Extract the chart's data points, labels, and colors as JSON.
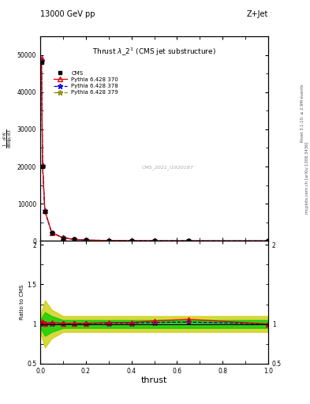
{
  "title_top": "13000 GeV pp",
  "title_right": "Z+Jet",
  "watermark": "CMS_2021_I1920187",
  "xlabel": "thrust",
  "ylabel_main": "1 / mathrm d#sigma / mathrm d p_T   mathrm d^2 sigma / mathrm d p_T mathrm d lambda",
  "ylabel_ratio": "Ratio to CMS",
  "right_label_1": "Rivet 3.1.10, ≥ 2.9M events",
  "right_label_2": "mcplots.cern.ch [arXiv:1306.3436]",
  "x": [
    0.005,
    0.01,
    0.02,
    0.05,
    0.1,
    0.15,
    0.2,
    0.3,
    0.4,
    0.5,
    0.65,
    1.0
  ],
  "cms_y": [
    48000,
    20000,
    8000,
    2200,
    800,
    400,
    220,
    100,
    50,
    25,
    8,
    2
  ],
  "py370_y": [
    49000,
    20500,
    8100,
    2250,
    810,
    405,
    222,
    102,
    51,
    26,
    8.5,
    2
  ],
  "py378_y": [
    48500,
    20200,
    8050,
    2220,
    805,
    402,
    221,
    101,
    50.5,
    25.5,
    8.2,
    2
  ],
  "py379_y": [
    48500,
    20200,
    8050,
    2220,
    805,
    402,
    221,
    101,
    50.5,
    25.5,
    8.2,
    2
  ],
  "ratio_370": [
    1.02,
    1.025,
    1.01,
    1.02,
    1.01,
    1.01,
    1.01,
    1.02,
    1.02,
    1.04,
    1.06,
    1.0
  ],
  "ratio_378": [
    1.01,
    1.01,
    1.006,
    1.01,
    1.006,
    1.005,
    1.005,
    1.01,
    1.01,
    1.02,
    1.025,
    1.0
  ],
  "ratio_379": [
    1.01,
    1.01,
    1.006,
    1.01,
    1.006,
    1.005,
    1.005,
    1.01,
    1.01,
    1.02,
    1.025,
    1.0
  ],
  "band_x": [
    0.0,
    0.02,
    0.05,
    0.1,
    0.2,
    1.0
  ],
  "band_green_lo": [
    0.95,
    0.85,
    0.9,
    0.95,
    0.95,
    0.95
  ],
  "band_green_hi": [
    1.05,
    1.15,
    1.1,
    1.05,
    1.05,
    1.05
  ],
  "band_yellow_lo": [
    0.9,
    0.7,
    0.82,
    0.9,
    0.9,
    0.9
  ],
  "band_yellow_hi": [
    1.1,
    1.3,
    1.18,
    1.1,
    1.1,
    1.1
  ],
  "color_cms": "#000000",
  "color_370": "#dd0000",
  "color_378": "#0000dd",
  "color_379": "#888800",
  "color_green": "#00cc00",
  "color_yellow": "#cccc00",
  "yticks_main": [
    0,
    10000,
    20000,
    30000,
    40000,
    50000
  ],
  "ytick_labels_main": [
    "0",
    "10000",
    "20000",
    "30000",
    "40000",
    "50000"
  ],
  "ylim_main": [
    0,
    55000
  ],
  "ylim_ratio": [
    0.5,
    2.05
  ],
  "xlim": [
    0.0,
    1.0
  ],
  "yticks_ratio": [
    0.5,
    1.0,
    1.5,
    2.0
  ],
  "ytick_labels_ratio": [
    "0.5",
    "1",
    "1.5",
    "2"
  ],
  "yticks_ratio_right": [
    0.5,
    1.0,
    2.0
  ],
  "ytick_labels_ratio_right": [
    "0.5",
    "1",
    "2"
  ]
}
